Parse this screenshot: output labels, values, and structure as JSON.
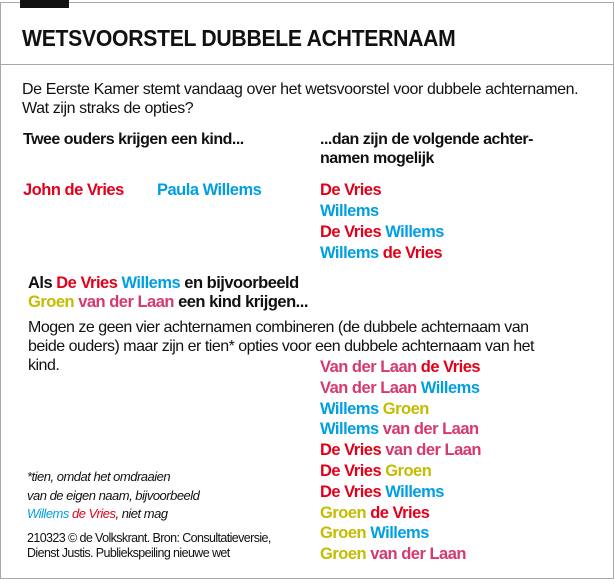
{
  "colors": {
    "red": "#e2001a",
    "blue": "#009fe3",
    "yellow": "#c4bc00",
    "pink": "#d6396b",
    "black": "#111111"
  },
  "title": "WETSVOORSTEL DUBBELE ACHTERNAAM",
  "intro": "De Eerste Kamer stemt vandaag over het wetsvoorstel voor dubbele achternamen. Wat zijn straks de opties?",
  "section1": {
    "left_header": "Twee ouders krijgen een kind...",
    "right_header_line1": "...dan zijn de volgende achter-",
    "right_header_line2": "namen mogelijk",
    "parent1": "John de Vries",
    "parent2": "Paula Willems",
    "options": [
      [
        {
          "t": "De Vries",
          "c": "red"
        }
      ],
      [
        {
          "t": "Willems",
          "c": "blue"
        }
      ],
      [
        {
          "t": "De Vries ",
          "c": "red"
        },
        {
          "t": "Willems",
          "c": "blue"
        }
      ],
      [
        {
          "t": "Willems ",
          "c": "blue"
        },
        {
          "t": "de Vries",
          "c": "red"
        }
      ]
    ]
  },
  "section2": {
    "header_line1": [
      {
        "t": "Als ",
        "c": "black"
      },
      {
        "t": "De Vries ",
        "c": "red"
      },
      {
        "t": "Willems ",
        "c": "blue"
      },
      {
        "t": "en bijvoorbeeld",
        "c": "black"
      }
    ],
    "header_line2": [
      {
        "t": "Groen ",
        "c": "yellow"
      },
      {
        "t": "van der Laan ",
        "c": "pink"
      },
      {
        "t": "een kind krijgen...",
        "c": "black"
      }
    ],
    "paragraph": "Mogen ze geen vier achternamen combineren (de dubbele achternaam van beide ouders) maar zijn er tien* opties voor een dubbele achternaam van het kind.",
    "options": [
      [
        {
          "t": "Van der Laan ",
          "c": "pink"
        },
        {
          "t": "de Vries",
          "c": "red"
        }
      ],
      [
        {
          "t": "Van der Laan ",
          "c": "pink"
        },
        {
          "t": "Willems",
          "c": "blue"
        }
      ],
      [
        {
          "t": "Willems ",
          "c": "blue"
        },
        {
          "t": "Groen",
          "c": "yellow"
        }
      ],
      [
        {
          "t": "Willems ",
          "c": "blue"
        },
        {
          "t": "van der Laan",
          "c": "pink"
        }
      ],
      [
        {
          "t": "De Vries ",
          "c": "red"
        },
        {
          "t": "van der Laan",
          "c": "pink"
        }
      ],
      [
        {
          "t": "De Vries ",
          "c": "red"
        },
        {
          "t": "Groen",
          "c": "yellow"
        }
      ],
      [
        {
          "t": "De Vries ",
          "c": "red"
        },
        {
          "t": "Willems",
          "c": "blue"
        }
      ],
      [
        {
          "t": "Groen ",
          "c": "yellow"
        },
        {
          "t": "de Vries",
          "c": "red"
        }
      ],
      [
        {
          "t": "Groen ",
          "c": "yellow"
        },
        {
          "t": "Willems",
          "c": "blue"
        }
      ],
      [
        {
          "t": "Groen ",
          "c": "yellow"
        },
        {
          "t": "van der Laan",
          "c": "pink"
        }
      ]
    ]
  },
  "footnote": {
    "line1": "*tien, omdat het omdraaien",
    "line2": "van de eigen naam, bijvoorbeeld",
    "line3": [
      {
        "t": "Willems ",
        "c": "blue"
      },
      {
        "t": "de Vries",
        "c": "red"
      },
      {
        "t": ", niet mag",
        "c": "black"
      }
    ]
  },
  "source": {
    "line1": "210323 © de Volkskrant. Bron: Consultatieversie,",
    "line2": "Dienst Justis. Publiekspeiling nieuwe wet"
  }
}
